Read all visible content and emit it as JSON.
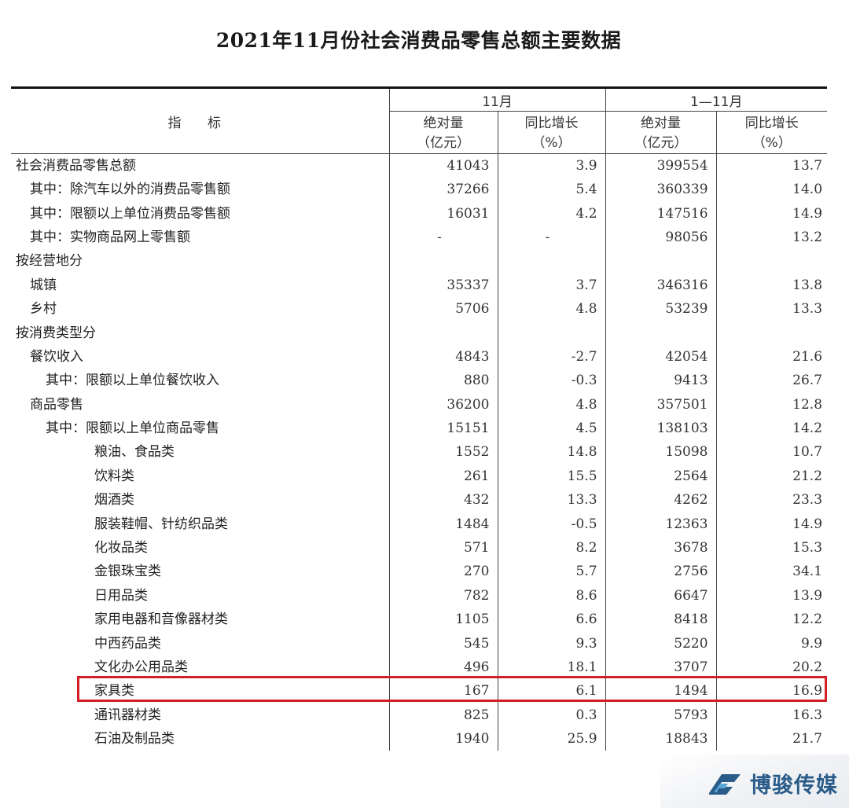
{
  "title": "2021年11月份社会消费品零售总额主要数据",
  "table": {
    "header": {
      "indicator": "指 标",
      "period1": "11月",
      "period2": "1—11月",
      "col_abs": "绝对量\n（亿元）",
      "col_growth": "同比增长\n（%）"
    },
    "rows": [
      {
        "name": "社会消费品零售总额",
        "level": 0,
        "m_abs": "41043",
        "m_yoy": "3.9",
        "y_abs": "399554",
        "y_yoy": "13.7"
      },
      {
        "name": "其中：除汽车以外的消费品零售额",
        "level": 1,
        "m_abs": "37266",
        "m_yoy": "5.4",
        "y_abs": "360339",
        "y_yoy": "14.0"
      },
      {
        "name": "其中：限额以上单位消费品零售额",
        "level": 1,
        "m_abs": "16031",
        "m_yoy": "4.2",
        "y_abs": "147516",
        "y_yoy": "14.9"
      },
      {
        "name": "其中：实物商品网上零售额",
        "level": 1,
        "m_abs": "-",
        "m_yoy": "-",
        "y_abs": "98056",
        "y_yoy": "13.2"
      },
      {
        "name": "按经营地分",
        "level": 0,
        "m_abs": "",
        "m_yoy": "",
        "y_abs": "",
        "y_yoy": ""
      },
      {
        "name": "城镇",
        "level": 1,
        "m_abs": "35337",
        "m_yoy": "3.7",
        "y_abs": "346316",
        "y_yoy": "13.8"
      },
      {
        "name": "乡村",
        "level": 1,
        "m_abs": "5706",
        "m_yoy": "4.8",
        "y_abs": "53239",
        "y_yoy": "13.3"
      },
      {
        "name": "按消费类型分",
        "level": 0,
        "m_abs": "",
        "m_yoy": "",
        "y_abs": "",
        "y_yoy": ""
      },
      {
        "name": "餐饮收入",
        "level": 1,
        "m_abs": "4843",
        "m_yoy": "-2.7",
        "y_abs": "42054",
        "y_yoy": "21.6"
      },
      {
        "name": "其中：限额以上单位餐饮收入",
        "level": 2,
        "m_abs": "880",
        "m_yoy": "-0.3",
        "y_abs": "9413",
        "y_yoy": "26.7"
      },
      {
        "name": "商品零售",
        "level": 1,
        "m_abs": "36200",
        "m_yoy": "4.8",
        "y_abs": "357501",
        "y_yoy": "12.8"
      },
      {
        "name": "其中：限额以上单位商品零售",
        "level": 2,
        "m_abs": "15151",
        "m_yoy": "4.5",
        "y_abs": "138103",
        "y_yoy": "14.2"
      },
      {
        "name": "粮油、食品类",
        "level": 3,
        "m_abs": "1552",
        "m_yoy": "14.8",
        "y_abs": "15098",
        "y_yoy": "10.7"
      },
      {
        "name": "饮料类",
        "level": 3,
        "m_abs": "261",
        "m_yoy": "15.5",
        "y_abs": "2564",
        "y_yoy": "21.2"
      },
      {
        "name": "烟酒类",
        "level": 3,
        "m_abs": "432",
        "m_yoy": "13.3",
        "y_abs": "4262",
        "y_yoy": "23.3"
      },
      {
        "name": "服装鞋帽、针纺织品类",
        "level": 3,
        "m_abs": "1484",
        "m_yoy": "-0.5",
        "y_abs": "12363",
        "y_yoy": "14.9"
      },
      {
        "name": "化妆品类",
        "level": 3,
        "m_abs": "571",
        "m_yoy": "8.2",
        "y_abs": "3678",
        "y_yoy": "15.3"
      },
      {
        "name": "金银珠宝类",
        "level": 3,
        "m_abs": "270",
        "m_yoy": "5.7",
        "y_abs": "2756",
        "y_yoy": "34.1"
      },
      {
        "name": "日用品类",
        "level": 3,
        "m_abs": "782",
        "m_yoy": "8.6",
        "y_abs": "6647",
        "y_yoy": "13.9"
      },
      {
        "name": "家用电器和音像器材类",
        "level": 3,
        "m_abs": "1105",
        "m_yoy": "6.6",
        "y_abs": "8418",
        "y_yoy": "12.2"
      },
      {
        "name": "中西药品类",
        "level": 3,
        "m_abs": "545",
        "m_yoy": "9.3",
        "y_abs": "5220",
        "y_yoy": "9.9"
      },
      {
        "name": "文化办公用品类",
        "level": 3,
        "m_abs": "496",
        "m_yoy": "18.1",
        "y_abs": "3707",
        "y_yoy": "20.2"
      },
      {
        "name": "家具类",
        "level": 3,
        "m_abs": "167",
        "m_yoy": "6.1",
        "y_abs": "1494",
        "y_yoy": "16.9",
        "highlighted": true
      },
      {
        "name": "通讯器材类",
        "level": 3,
        "m_abs": "825",
        "m_yoy": "0.3",
        "y_abs": "5793",
        "y_yoy": "16.3"
      },
      {
        "name": "石油及制品类",
        "level": 3,
        "m_abs": "1940",
        "m_yoy": "25.9",
        "y_abs": "18843",
        "y_yoy": "21.7"
      }
    ]
  },
  "highlight_color": "#d21f26",
  "watermark": {
    "text": "博骏传媒",
    "icon": "logo-mark-icon",
    "color": "#2a5c8a"
  }
}
